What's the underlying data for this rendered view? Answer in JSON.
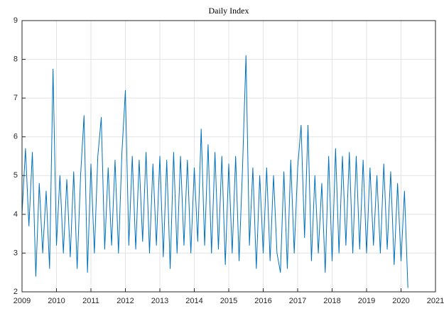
{
  "chart_data": {
    "type": "line",
    "title": "Daily Index",
    "x": [
      2009.0,
      2009.1,
      2009.2,
      2009.3,
      2009.4,
      2009.5,
      2009.6,
      2009.7,
      2009.8,
      2009.9,
      2010.0,
      2010.1,
      2010.2,
      2010.3,
      2010.4,
      2010.5,
      2010.6,
      2010.7,
      2010.8,
      2010.9,
      2011.0,
      2011.1,
      2011.2,
      2011.3,
      2011.4,
      2011.5,
      2011.6,
      2011.7,
      2011.8,
      2011.9,
      2012.0,
      2012.1,
      2012.2,
      2012.3,
      2012.4,
      2012.5,
      2012.6,
      2012.7,
      2012.8,
      2012.9,
      2013.0,
      2013.1,
      2013.2,
      2013.3,
      2013.4,
      2013.5,
      2013.6,
      2013.7,
      2013.8,
      2013.9,
      2014.0,
      2014.1,
      2014.2,
      2014.3,
      2014.4,
      2014.5,
      2014.6,
      2014.7,
      2014.8,
      2014.9,
      2015.0,
      2015.1,
      2015.2,
      2015.3,
      2015.4,
      2015.5,
      2015.6,
      2015.7,
      2015.8,
      2015.9,
      2016.0,
      2016.1,
      2016.2,
      2016.3,
      2016.4,
      2016.5,
      2016.6,
      2016.7,
      2016.8,
      2016.9,
      2017.0,
      2017.1,
      2017.2,
      2017.3,
      2017.4,
      2017.5,
      2017.6,
      2017.7,
      2017.8,
      2017.9,
      2018.0,
      2018.1,
      2018.2,
      2018.3,
      2018.4,
      2018.5,
      2018.6,
      2018.7,
      2018.8,
      2018.9,
      2019.0,
      2019.1,
      2019.2,
      2019.3,
      2019.4,
      2019.5,
      2019.6,
      2019.7,
      2019.8,
      2019.9,
      2020.0,
      2020.1,
      2020.2
    ],
    "series": [
      {
        "color": "#0072bd",
        "values": [
          4.0,
          5.7,
          3.7,
          5.6,
          2.4,
          4.8,
          3.0,
          4.6,
          2.6,
          7.75,
          3.2,
          5.0,
          3.0,
          4.9,
          2.9,
          5.1,
          2.6,
          5.0,
          6.55,
          2.5,
          5.3,
          3.0,
          5.5,
          6.5,
          3.1,
          5.2,
          3.2,
          5.4,
          3.0,
          5.6,
          7.2,
          3.2,
          5.5,
          3.1,
          5.4,
          3.3,
          5.6,
          3.0,
          5.3,
          3.2,
          5.5,
          2.9,
          5.4,
          2.6,
          5.6,
          3.0,
          5.5,
          3.2,
          5.4,
          3.0,
          5.2,
          3.3,
          6.2,
          3.2,
          5.8,
          3.0,
          5.6,
          3.1,
          5.5,
          2.7,
          5.3,
          3.0,
          5.5,
          2.8,
          5.2,
          8.1,
          3.2,
          5.2,
          2.6,
          5.0,
          3.0,
          5.2,
          2.8,
          5.0,
          3.0,
          2.5,
          5.1,
          2.6,
          5.4,
          3.0,
          5.2,
          6.3,
          3.4,
          6.3,
          2.8,
          5.0,
          3.0,
          4.8,
          2.5,
          5.5,
          2.8,
          5.7,
          3.0,
          5.5,
          3.2,
          5.6,
          3.0,
          5.5,
          3.1,
          5.4,
          3.0,
          5.2,
          3.2,
          5.0,
          3.0,
          5.3,
          3.1,
          5.1,
          2.7,
          4.8,
          2.8,
          4.6,
          2.1
        ]
      }
    ],
    "xlim": [
      2009,
      2021
    ],
    "xticks": [
      2009,
      2010,
      2011,
      2012,
      2013,
      2014,
      2015,
      2016,
      2017,
      2018,
      2019,
      2020,
      2021
    ],
    "ylim": [
      2,
      9
    ],
    "yticks": [
      2,
      3,
      4,
      5,
      6,
      7,
      8,
      9
    ],
    "grid": true
  }
}
